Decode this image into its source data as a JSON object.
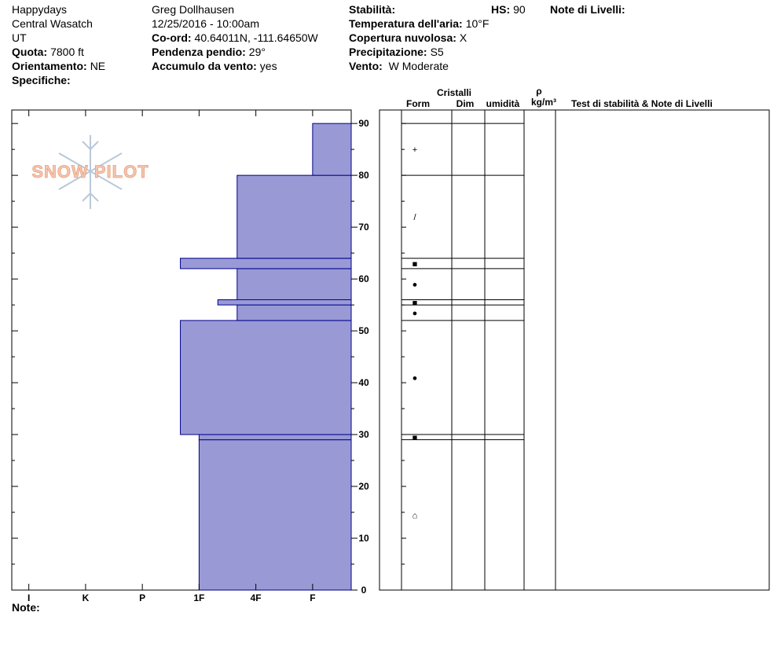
{
  "header": {
    "location": [
      "Happydays",
      "Central Wasatch",
      "UT"
    ],
    "observer": "Greg Dollhausen",
    "datetime": "12/25/2016 - 10:00am",
    "fields": [
      {
        "label": "Quota:",
        "value": "7800 ft"
      },
      {
        "label": "Orientamento:",
        "value": "NE"
      },
      {
        "label": "Specifiche:"
      },
      {
        "label": "Co-ord:",
        "value": "40.64011N, -111.64650W"
      },
      {
        "label": "Pendenza pendio:",
        "value": "29°"
      },
      {
        "label": "Accumulo da vento:",
        "value": "yes"
      },
      {
        "label": "Stabilità:"
      },
      {
        "label": "HS:",
        "value": 90
      },
      {
        "label": "Temperatura dell'aria:",
        "value": "10°F"
      },
      {
        "label": "Copertura nuvolosa:",
        "value": "X"
      },
      {
        "label": "Precipitazione:",
        "value": "S5"
      },
      {
        "label": "Vento:",
        "value": " W Moderate"
      },
      {
        "label": "Note di Livelli:"
      }
    ]
  },
  "logo": "SNOW PILOT",
  "table_headers": {
    "group": "Cristalli",
    "form": "Form",
    "dim": "Dim",
    "moisture": "umidità",
    "rho": "ρ",
    "density_unit": "kg/m³",
    "notes": "Test di stabilità & Note di Livelli"
  },
  "footer": "Note:",
  "chart_data": {
    "type": "snow-profile",
    "color": "#9999d6",
    "edge_color": "#00008b",
    "xlim": [
      6.3,
      0.32
    ],
    "xticks": [
      {
        "value": 6,
        "label": "I"
      },
      {
        "value": 5,
        "label": "K"
      },
      {
        "value": 4,
        "label": "P"
      },
      {
        "value": 3,
        "label": "1F"
      },
      {
        "value": 2,
        "label": "4F"
      },
      {
        "value": 1,
        "label": "F"
      }
    ],
    "ylim": [
      0,
      92.6
    ],
    "yticks": [
      0,
      10,
      20,
      30,
      40,
      50,
      60,
      70,
      80,
      90
    ],
    "layers": [
      {
        "bottom": 0,
        "top": 29,
        "hardness": 3,
        "form": "⌂"
      },
      {
        "bottom": 29,
        "top": 30,
        "hardness": 3,
        "form": "■"
      },
      {
        "bottom": 30,
        "top": 52,
        "hardness": 3.33,
        "form": "●"
      },
      {
        "bottom": 52,
        "top": 55,
        "hardness": 2.33,
        "form": "●"
      },
      {
        "bottom": 55,
        "top": 56,
        "hardness": 2.67,
        "form": "■"
      },
      {
        "bottom": 56,
        "top": 62,
        "hardness": 2.33,
        "form": "●"
      },
      {
        "bottom": 62,
        "top": 64,
        "hardness": 3.33,
        "form": "■"
      },
      {
        "bottom": 64,
        "top": 80,
        "hardness": 2.33,
        "form": "/"
      },
      {
        "bottom": 80,
        "top": 90,
        "hardness": 1,
        "form": "+"
      }
    ]
  }
}
